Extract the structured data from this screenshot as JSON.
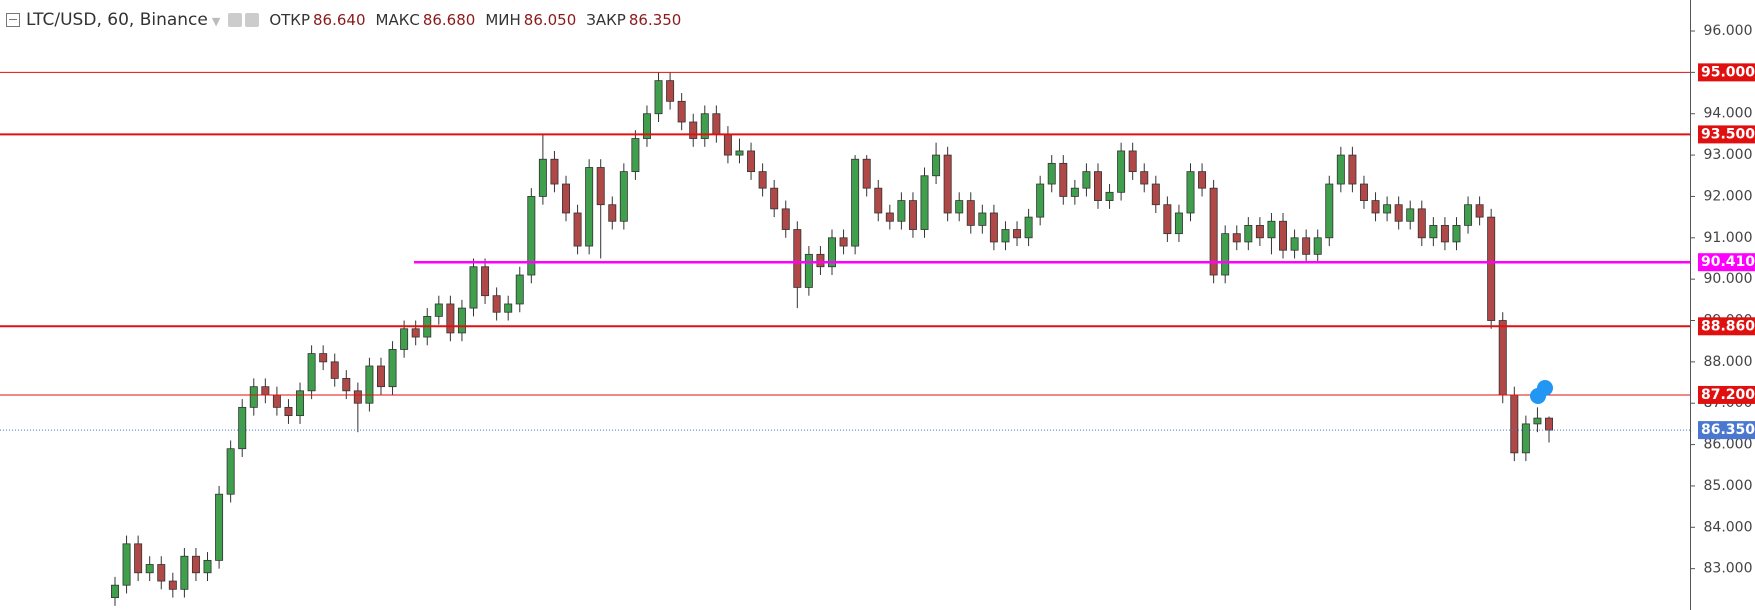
{
  "chart_data": {
    "type": "candlestick",
    "title": "LTC/USD, 60, Binance",
    "legend": [
      {
        "name": "ОТКР",
        "value": 86.64,
        "label": "86.640"
      },
      {
        "name": "МАКС",
        "value": 86.68,
        "label": "86.680"
      },
      {
        "name": "МИН",
        "value": 86.05,
        "label": "86.050"
      },
      {
        "name": "ЗАКР",
        "value": 86.35,
        "label": "86.350"
      }
    ],
    "up_color": "#3f9f4d",
    "down_color": "#b04848",
    "ylim": [
      82.0,
      96.75
    ],
    "yticks": [
      {
        "value": 83,
        "label": "83.000"
      },
      {
        "value": 84,
        "label": "84.000"
      },
      {
        "value": 85,
        "label": "85.000"
      },
      {
        "value": 86,
        "label": "86.000"
      },
      {
        "value": 87,
        "label": "87.000"
      },
      {
        "value": 88,
        "label": "88.000"
      },
      {
        "value": 89,
        "label": "89.000"
      },
      {
        "value": 90,
        "label": "90.000"
      },
      {
        "value": 91,
        "label": "91.000"
      },
      {
        "value": 92,
        "label": "92.000"
      },
      {
        "value": 93,
        "label": "93.000"
      },
      {
        "value": 94,
        "label": "94.000"
      },
      {
        "value": 95,
        "label": "95.000"
      },
      {
        "value": 96,
        "label": "96.000"
      }
    ],
    "levels": [
      {
        "value": 95.0,
        "label": "95.000",
        "color": "#e01010",
        "width": 1
      },
      {
        "value": 93.5,
        "label": "93.500",
        "color": "#e01010",
        "width": 2
      },
      {
        "value": 90.41,
        "label": "90.410",
        "color": "#ff00ff",
        "width": 2.5
      },
      {
        "value": 88.86,
        "label": "88.860",
        "color": "#e01010",
        "width": 2
      },
      {
        "value": 87.2,
        "label": "87.200",
        "color": "#e01010",
        "width": 1
      },
      {
        "value": 86.35,
        "label": "86.350",
        "color": "#4a78d0",
        "width": 1,
        "dotted": true
      }
    ],
    "ohlc": [
      [
        82.3,
        82.8,
        82.1,
        82.6
      ],
      [
        82.6,
        83.8,
        82.4,
        83.6
      ],
      [
        83.6,
        83.8,
        82.7,
        82.9
      ],
      [
        82.9,
        83.3,
        82.7,
        83.1
      ],
      [
        83.1,
        83.3,
        82.5,
        82.7
      ],
      [
        82.7,
        82.9,
        82.3,
        82.5
      ],
      [
        82.5,
        83.5,
        82.3,
        83.3
      ],
      [
        83.3,
        83.5,
        82.7,
        82.9
      ],
      [
        82.9,
        83.4,
        82.7,
        83.2
      ],
      [
        83.2,
        85.0,
        83.0,
        84.8
      ],
      [
        84.8,
        86.1,
        84.6,
        85.9
      ],
      [
        85.9,
        87.1,
        85.7,
        86.9
      ],
      [
        86.9,
        87.6,
        86.7,
        87.4
      ],
      [
        87.4,
        87.6,
        87.0,
        87.2
      ],
      [
        87.2,
        87.4,
        86.7,
        86.9
      ],
      [
        86.9,
        87.1,
        86.5,
        86.7
      ],
      [
        86.7,
        87.5,
        86.5,
        87.3
      ],
      [
        87.3,
        88.4,
        87.1,
        88.2
      ],
      [
        88.2,
        88.4,
        87.8,
        88.0
      ],
      [
        88.0,
        88.2,
        87.4,
        87.6
      ],
      [
        87.6,
        87.8,
        87.1,
        87.3
      ],
      [
        87.3,
        87.5,
        86.3,
        87.0
      ],
      [
        87.0,
        88.1,
        86.8,
        87.9
      ],
      [
        87.9,
        88.1,
        87.2,
        87.4
      ],
      [
        87.4,
        88.5,
        87.2,
        88.3
      ],
      [
        88.3,
        89.0,
        88.1,
        88.8
      ],
      [
        88.8,
        89.0,
        88.4,
        88.6
      ],
      [
        88.6,
        89.3,
        88.4,
        89.1
      ],
      [
        89.1,
        89.6,
        88.9,
        89.4
      ],
      [
        89.4,
        89.6,
        88.5,
        88.7
      ],
      [
        88.7,
        89.5,
        88.5,
        89.3
      ],
      [
        89.3,
        90.5,
        89.1,
        90.3
      ],
      [
        90.3,
        90.5,
        89.4,
        89.6
      ],
      [
        89.6,
        89.8,
        89.0,
        89.2
      ],
      [
        89.2,
        89.6,
        89.0,
        89.4
      ],
      [
        89.4,
        90.3,
        89.2,
        90.1
      ],
      [
        90.1,
        92.2,
        89.9,
        92.0
      ],
      [
        92.0,
        93.5,
        91.8,
        92.9
      ],
      [
        92.9,
        93.1,
        92.1,
        92.3
      ],
      [
        92.3,
        92.5,
        91.4,
        91.6
      ],
      [
        91.6,
        91.8,
        90.6,
        90.8
      ],
      [
        90.8,
        92.9,
        90.6,
        92.7
      ],
      [
        92.7,
        92.9,
        90.5,
        91.8
      ],
      [
        91.8,
        92.0,
        91.2,
        91.4
      ],
      [
        91.4,
        92.8,
        91.2,
        92.6
      ],
      [
        92.6,
        93.6,
        92.4,
        93.4
      ],
      [
        93.4,
        94.2,
        93.2,
        94.0
      ],
      [
        94.0,
        95.0,
        93.8,
        94.8
      ],
      [
        94.8,
        95.0,
        94.1,
        94.3
      ],
      [
        94.3,
        94.5,
        93.6,
        93.8
      ],
      [
        93.8,
        94.0,
        93.2,
        93.4
      ],
      [
        93.4,
        94.2,
        93.2,
        94.0
      ],
      [
        94.0,
        94.2,
        93.3,
        93.5
      ],
      [
        93.5,
        93.7,
        92.8,
        93.0
      ],
      [
        93.0,
        93.4,
        92.8,
        93.1
      ],
      [
        93.1,
        93.3,
        92.4,
        92.6
      ],
      [
        92.6,
        92.8,
        92.0,
        92.2
      ],
      [
        92.2,
        92.4,
        91.5,
        91.7
      ],
      [
        91.7,
        91.9,
        91.0,
        91.2
      ],
      [
        91.2,
        91.4,
        89.3,
        89.8
      ],
      [
        89.8,
        90.8,
        89.6,
        90.6
      ],
      [
        90.6,
        90.8,
        90.1,
        90.3
      ],
      [
        90.3,
        91.2,
        90.1,
        91.0
      ],
      [
        91.0,
        91.2,
        90.6,
        90.8
      ],
      [
        90.8,
        93.0,
        90.6,
        92.9
      ],
      [
        92.9,
        93.0,
        92.0,
        92.2
      ],
      [
        92.2,
        92.4,
        91.4,
        91.6
      ],
      [
        91.6,
        91.8,
        91.2,
        91.4
      ],
      [
        91.4,
        92.1,
        91.2,
        91.9
      ],
      [
        91.9,
        92.1,
        91.0,
        91.2
      ],
      [
        91.2,
        92.7,
        91.0,
        92.5
      ],
      [
        92.5,
        93.3,
        92.3,
        93.0
      ],
      [
        93.0,
        93.2,
        91.4,
        91.6
      ],
      [
        91.6,
        92.1,
        91.4,
        91.9
      ],
      [
        91.9,
        92.1,
        91.1,
        91.3
      ],
      [
        91.3,
        91.8,
        91.1,
        91.6
      ],
      [
        91.6,
        91.8,
        90.7,
        90.9
      ],
      [
        90.9,
        91.4,
        90.7,
        91.2
      ],
      [
        91.2,
        91.4,
        90.8,
        91.0
      ],
      [
        91.0,
        91.7,
        90.8,
        91.5
      ],
      [
        91.5,
        92.5,
        91.3,
        92.3
      ],
      [
        92.3,
        93.0,
        92.1,
        92.8
      ],
      [
        92.8,
        93.0,
        91.8,
        92.0
      ],
      [
        92.0,
        92.4,
        91.8,
        92.2
      ],
      [
        92.2,
        92.8,
        92.0,
        92.6
      ],
      [
        92.6,
        92.8,
        91.7,
        91.9
      ],
      [
        91.9,
        92.3,
        91.7,
        92.1
      ],
      [
        92.1,
        93.3,
        91.9,
        93.1
      ],
      [
        93.1,
        93.3,
        92.4,
        92.6
      ],
      [
        92.6,
        92.8,
        92.1,
        92.3
      ],
      [
        92.3,
        92.5,
        91.6,
        91.8
      ],
      [
        91.8,
        92.0,
        90.9,
        91.1
      ],
      [
        91.1,
        91.8,
        90.9,
        91.6
      ],
      [
        91.6,
        92.8,
        91.4,
        92.6
      ],
      [
        92.6,
        92.8,
        92.0,
        92.2
      ],
      [
        92.2,
        92.4,
        89.9,
        90.1
      ],
      [
        90.1,
        91.3,
        89.9,
        91.1
      ],
      [
        91.1,
        91.3,
        90.7,
        90.9
      ],
      [
        90.9,
        91.5,
        90.7,
        91.3
      ],
      [
        91.3,
        91.5,
        90.8,
        91.0
      ],
      [
        91.0,
        91.6,
        90.6,
        91.4
      ],
      [
        91.4,
        91.6,
        90.5,
        90.7
      ],
      [
        90.7,
        91.2,
        90.5,
        91.0
      ],
      [
        91.0,
        91.2,
        90.4,
        90.6
      ],
      [
        90.6,
        91.2,
        90.4,
        91.0
      ],
      [
        91.0,
        92.5,
        90.8,
        92.3
      ],
      [
        92.3,
        93.2,
        92.1,
        93.0
      ],
      [
        93.0,
        93.2,
        92.1,
        92.3
      ],
      [
        92.3,
        92.5,
        91.7,
        91.9
      ],
      [
        91.9,
        92.1,
        91.4,
        91.6
      ],
      [
        91.6,
        92.0,
        91.4,
        91.8
      ],
      [
        91.8,
        92.0,
        91.2,
        91.4
      ],
      [
        91.4,
        91.9,
        91.2,
        91.7
      ],
      [
        91.7,
        91.9,
        90.8,
        91.0
      ],
      [
        91.0,
        91.5,
        90.8,
        91.3
      ],
      [
        91.3,
        91.5,
        90.7,
        90.9
      ],
      [
        90.9,
        91.5,
        90.7,
        91.3
      ],
      [
        91.3,
        92.0,
        91.1,
        91.8
      ],
      [
        91.8,
        92.0,
        91.3,
        91.5
      ],
      [
        91.5,
        91.7,
        88.8,
        89.0
      ],
      [
        89.0,
        89.2,
        87.0,
        87.2
      ],
      [
        87.2,
        87.4,
        85.6,
        85.8
      ],
      [
        85.8,
        86.7,
        85.6,
        86.5
      ],
      [
        86.5,
        86.9,
        86.3,
        86.64
      ],
      [
        86.64,
        86.68,
        86.05,
        86.35
      ]
    ]
  }
}
